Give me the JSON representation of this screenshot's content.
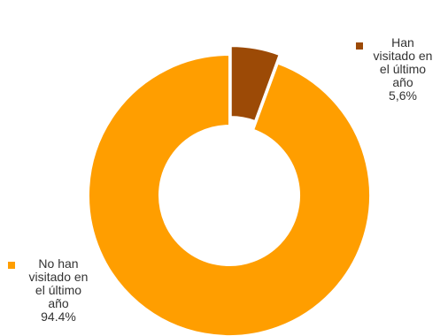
{
  "chart_data": {
    "type": "pie",
    "donut": true,
    "title": "",
    "slices": [
      {
        "name": "Han visitado en el último año",
        "value": 5.6,
        "value_label": "5,6%",
        "color": "#9C4A06",
        "exploded": true
      },
      {
        "name": "No han visitado en el último año",
        "value": 94.4,
        "value_label": "94.4%",
        "color": "#FF9E00",
        "exploded": false
      }
    ],
    "labels": [
      {
        "lines": [
          "Han",
          "visitado en",
          "el último",
          "año",
          "5,6%"
        ]
      },
      {
        "lines": [
          "No han",
          "visitado en",
          "el último",
          "año",
          "94.4%"
        ]
      }
    ]
  }
}
